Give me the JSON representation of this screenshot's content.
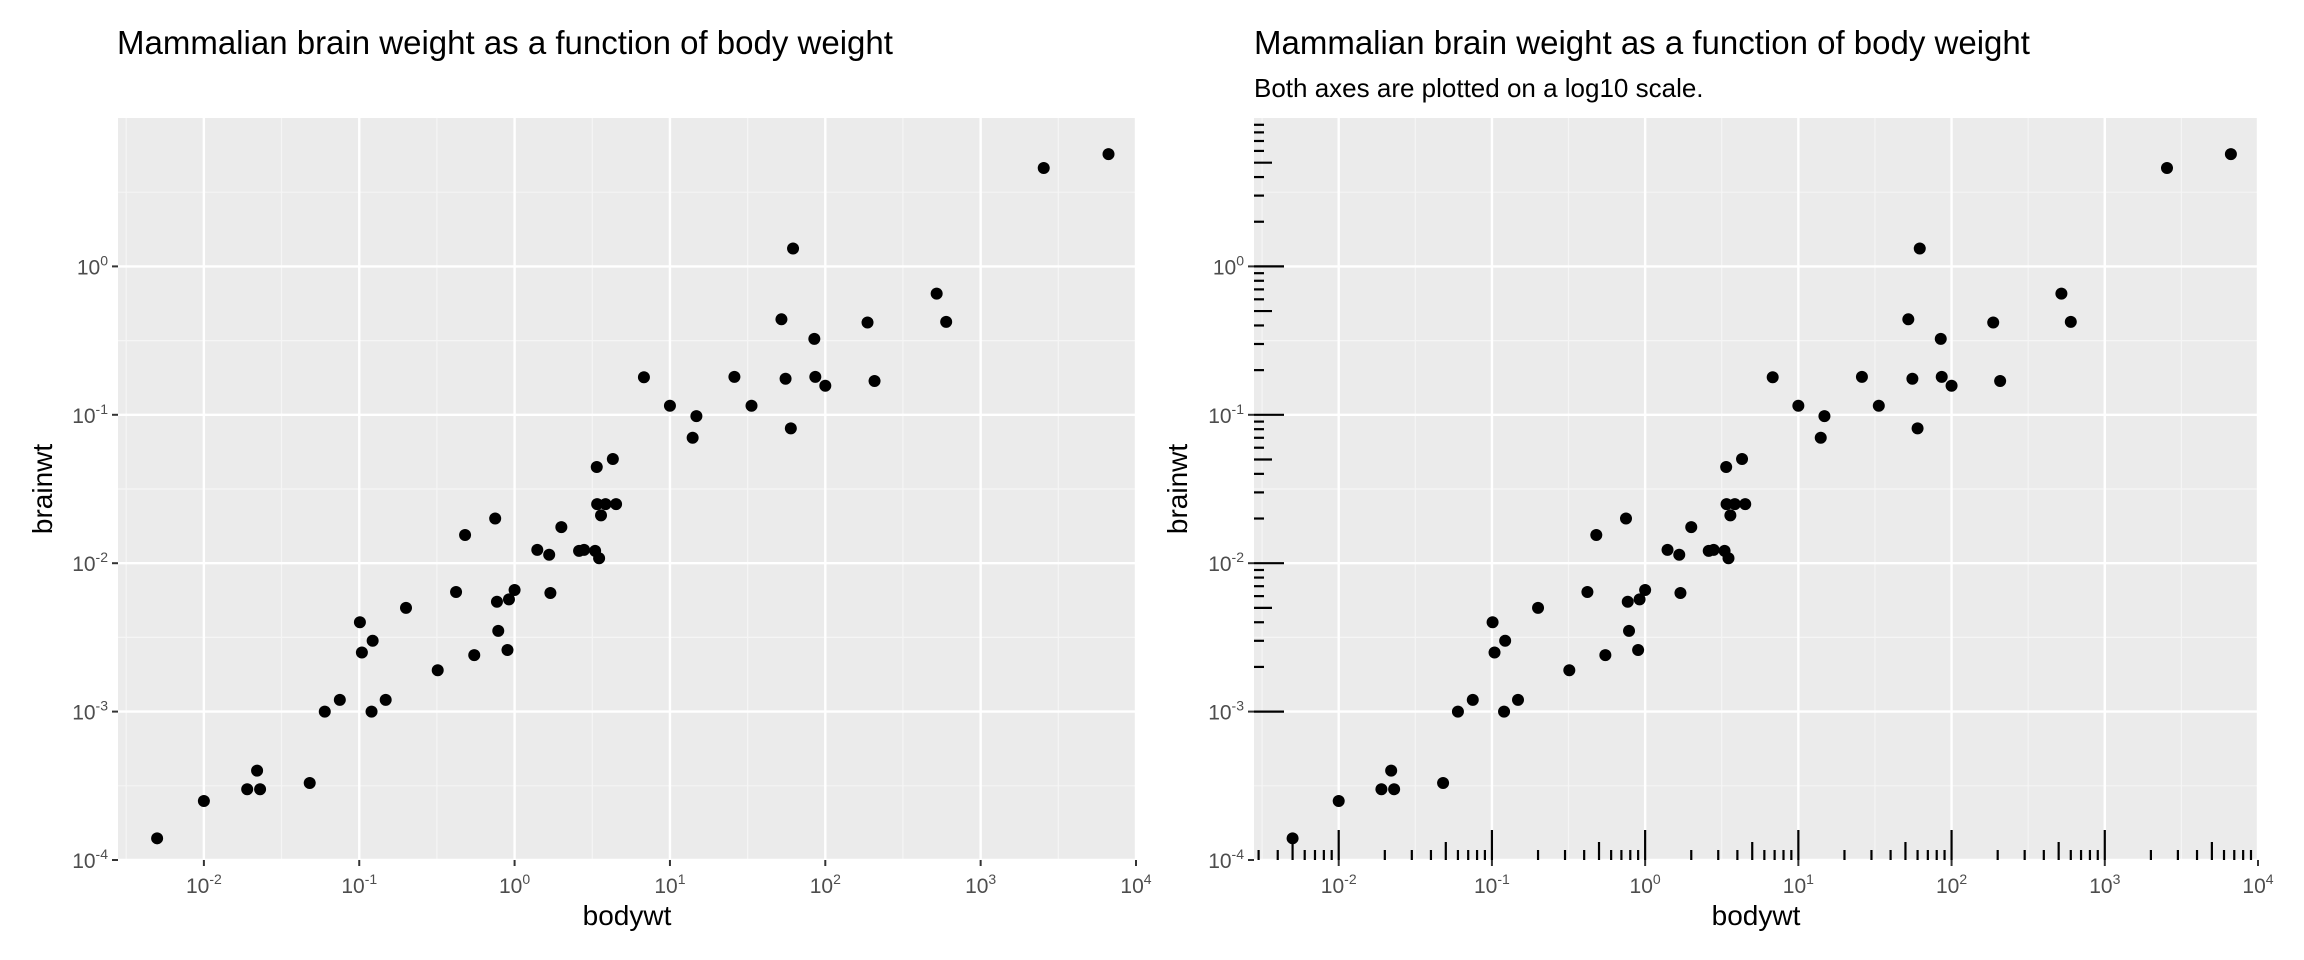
{
  "charts": [
    {
      "title": "Mammalian brain weight as a function of body weight",
      "subtitle": "",
      "xlabel": "bodywt",
      "ylabel": "brainwt"
    },
    {
      "title": "Mammalian brain weight as a function of body weight",
      "subtitle": "Both axes are plotted on a log10 scale.",
      "xlabel": "bodywt",
      "ylabel": "brainwt"
    }
  ],
  "chart_data": [
    {
      "type": "scatter",
      "title": "Mammalian brain weight as a function of body weight",
      "xlabel": "bodywt",
      "ylabel": "brainwt",
      "x_scale": "log10",
      "y_scale": "log10",
      "xlim": [
        0.0028,
        10000
      ],
      "ylim": [
        0.0001,
        10
      ],
      "x_ticks": [
        "10^-2",
        "10^-1",
        "10^0",
        "10^1",
        "10^2",
        "10^3",
        "10^4"
      ],
      "y_ticks": [
        "10^-4",
        "10^-3",
        "10^-2",
        "10^-1",
        "10^0"
      ],
      "grid": true,
      "log_rug_ticks": false,
      "points": [
        [
          0.005,
          0.00014
        ],
        [
          0.01,
          0.00025
        ],
        [
          0.019,
          0.0003
        ],
        [
          0.022,
          0.0004
        ],
        [
          0.023,
          0.0003
        ],
        [
          0.048,
          0.00033
        ],
        [
          0.06,
          0.001
        ],
        [
          0.075,
          0.0012
        ],
        [
          0.101,
          0.004
        ],
        [
          0.104,
          0.0025
        ],
        [
          0.12,
          0.001
        ],
        [
          0.122,
          0.003
        ],
        [
          0.148,
          0.0012
        ],
        [
          0.2,
          0.005
        ],
        [
          0.32,
          0.0019
        ],
        [
          0.42,
          0.0064
        ],
        [
          0.48,
          0.0155
        ],
        [
          0.55,
          0.0024
        ],
        [
          0.75,
          0.02
        ],
        [
          0.77,
          0.0055
        ],
        [
          0.785,
          0.0035
        ],
        [
          0.9,
          0.0026
        ],
        [
          0.92,
          0.0057
        ],
        [
          1.0,
          0.0066
        ],
        [
          1.4,
          0.0123
        ],
        [
          1.67,
          0.0114
        ],
        [
          1.7,
          0.0063
        ],
        [
          2.0,
          0.0175
        ],
        [
          2.6,
          0.0121
        ],
        [
          2.8,
          0.0123
        ],
        [
          3.3,
          0.0121
        ],
        [
          3.38,
          0.0445
        ],
        [
          3.4,
          0.025
        ],
        [
          3.5,
          0.0108
        ],
        [
          3.6,
          0.021
        ],
        [
          3.85,
          0.025
        ],
        [
          4.29,
          0.0504
        ],
        [
          4.5,
          0.025
        ],
        [
          6.8,
          0.179
        ],
        [
          10.0,
          0.115
        ],
        [
          14.0,
          0.07
        ],
        [
          14.8,
          0.098
        ],
        [
          26.0,
          0.18
        ],
        [
          33.5,
          0.115
        ],
        [
          52.2,
          0.44
        ],
        [
          55.5,
          0.175
        ],
        [
          60.0,
          0.081
        ],
        [
          62.0,
          1.32
        ],
        [
          85.0,
          0.325
        ],
        [
          86.25,
          0.18
        ],
        [
          100.0,
          0.157
        ],
        [
          187.0,
          0.419
        ],
        [
          207.5,
          0.169
        ],
        [
          521.0,
          0.655
        ],
        [
          600.0,
          0.423
        ],
        [
          2547.0,
          4.603
        ],
        [
          6654.0,
          5.712
        ]
      ]
    },
    {
      "type": "scatter",
      "title": "Mammalian brain weight as a function of body weight",
      "subtitle": "Both axes are plotted on a log10 scale.",
      "xlabel": "bodywt",
      "ylabel": "brainwt",
      "x_scale": "log10",
      "y_scale": "log10",
      "xlim": [
        0.0028,
        10000
      ],
      "ylim": [
        0.0001,
        10
      ],
      "x_ticks": [
        "10^-2",
        "10^-1",
        "10^0",
        "10^1",
        "10^2",
        "10^3",
        "10^4"
      ],
      "y_ticks": [
        "10^-4",
        "10^-3",
        "10^-2",
        "10^-1",
        "10^0"
      ],
      "grid": true,
      "log_rug_ticks": true,
      "points": [
        [
          0.005,
          0.00014
        ],
        [
          0.01,
          0.00025
        ],
        [
          0.019,
          0.0003
        ],
        [
          0.022,
          0.0004
        ],
        [
          0.023,
          0.0003
        ],
        [
          0.048,
          0.00033
        ],
        [
          0.06,
          0.001
        ],
        [
          0.075,
          0.0012
        ],
        [
          0.101,
          0.004
        ],
        [
          0.104,
          0.0025
        ],
        [
          0.12,
          0.001
        ],
        [
          0.122,
          0.003
        ],
        [
          0.148,
          0.0012
        ],
        [
          0.2,
          0.005
        ],
        [
          0.32,
          0.0019
        ],
        [
          0.42,
          0.0064
        ],
        [
          0.48,
          0.0155
        ],
        [
          0.55,
          0.0024
        ],
        [
          0.75,
          0.02
        ],
        [
          0.77,
          0.0055
        ],
        [
          0.785,
          0.0035
        ],
        [
          0.9,
          0.0026
        ],
        [
          0.92,
          0.0057
        ],
        [
          1.0,
          0.0066
        ],
        [
          1.4,
          0.0123
        ],
        [
          1.67,
          0.0114
        ],
        [
          1.7,
          0.0063
        ],
        [
          2.0,
          0.0175
        ],
        [
          2.6,
          0.0121
        ],
        [
          2.8,
          0.0123
        ],
        [
          3.3,
          0.0121
        ],
        [
          3.38,
          0.0445
        ],
        [
          3.4,
          0.025
        ],
        [
          3.5,
          0.0108
        ],
        [
          3.6,
          0.021
        ],
        [
          3.85,
          0.025
        ],
        [
          4.29,
          0.0504
        ],
        [
          4.5,
          0.025
        ],
        [
          6.8,
          0.179
        ],
        [
          10.0,
          0.115
        ],
        [
          14.0,
          0.07
        ],
        [
          14.8,
          0.098
        ],
        [
          26.0,
          0.18
        ],
        [
          33.5,
          0.115
        ],
        [
          52.2,
          0.44
        ],
        [
          55.5,
          0.175
        ],
        [
          60.0,
          0.081
        ],
        [
          62.0,
          1.32
        ],
        [
          85.0,
          0.325
        ],
        [
          86.25,
          0.18
        ],
        [
          100.0,
          0.157
        ],
        [
          187.0,
          0.419
        ],
        [
          207.5,
          0.169
        ],
        [
          521.0,
          0.655
        ],
        [
          600.0,
          0.423
        ],
        [
          2547.0,
          4.603
        ],
        [
          6654.0,
          5.712
        ]
      ]
    }
  ]
}
